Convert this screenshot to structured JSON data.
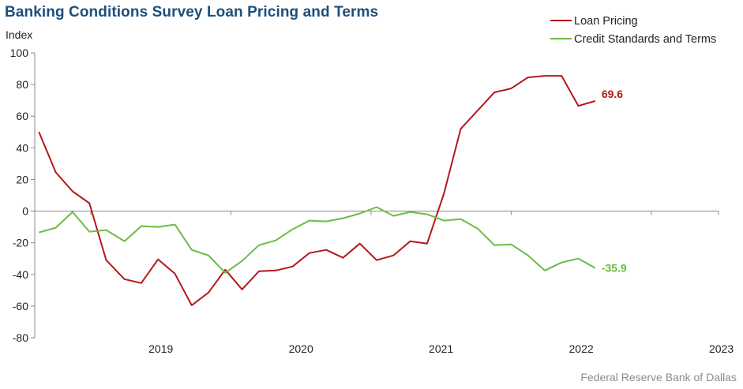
{
  "chart_data": {
    "type": "line",
    "title": "Banking Conditions Survey Loan Pricing and Terms",
    "ylabel": "Index",
    "ylim": [
      -80,
      100
    ],
    "yticks": [
      -80,
      -60,
      -40,
      -20,
      0,
      20,
      40,
      60,
      80,
      100
    ],
    "xlim": [
      2018.6,
      2023.48
    ],
    "xtick_labels": [
      "2019",
      "2020",
      "2021",
      "2022",
      "2023"
    ],
    "xtick_positions": [
      2019.5,
      2020.5,
      2021.5,
      2022.5,
      2023.5
    ],
    "x": [
      2018.63,
      2018.75,
      2018.87,
      2018.99,
      2019.11,
      2019.24,
      2019.36,
      2019.48,
      2019.6,
      2019.72,
      2019.84,
      2019.96,
      2020.08,
      2020.2,
      2020.32,
      2020.44,
      2020.56,
      2020.68,
      2020.8,
      2020.92,
      2021.04,
      2021.16,
      2021.28,
      2021.4,
      2021.52,
      2021.64,
      2021.76,
      2021.88,
      2022.0,
      2022.12,
      2022.24,
      2022.36,
      2022.48,
      2022.6,
      2022.72
    ],
    "series": [
      {
        "name": "Loan Pricing",
        "color": "#b2181b",
        "end_label": "69.6",
        "values": [
          50,
          24.5,
          12.5,
          5,
          -31,
          -43,
          -45.5,
          -30.5,
          -39.5,
          -59.5,
          -51.5,
          -37,
          -49.5,
          -38,
          -37.5,
          -35,
          -26.5,
          -24.5,
          -29.5,
          -20.5,
          -31,
          -28,
          -19,
          -20.5,
          11,
          52,
          63.5,
          75,
          77.5,
          84.5,
          85.5,
          85.5,
          66.5,
          69.6,
          null
        ]
      },
      {
        "name": "Credit Standards and Terms",
        "color": "#6cbb45",
        "end_label": "-35.9",
        "values": [
          -13.5,
          -10.5,
          -0.5,
          -13,
          -12,
          -19,
          -9.5,
          -10,
          -8.5,
          -24.5,
          -28,
          -39,
          -31.5,
          -21.5,
          -18.5,
          -11.5,
          -6,
          -6.5,
          -4.5,
          -1.5,
          2.5,
          -3,
          -0.5,
          -2,
          -6,
          -5,
          -11,
          -21.5,
          -21,
          -28,
          -37.5,
          -32.5,
          -30,
          -35.9,
          null
        ]
      }
    ],
    "legend_position": "top-right",
    "grid": false,
    "source": "Federal Reserve Bank of Dallas"
  }
}
